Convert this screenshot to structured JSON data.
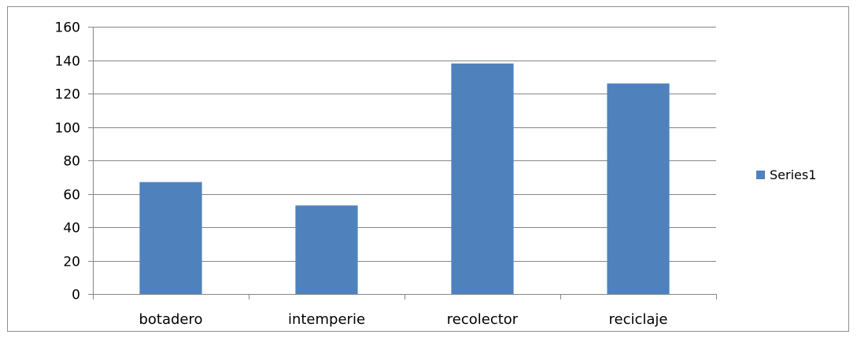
{
  "chart_data": {
    "type": "bar",
    "title": "",
    "xlabel": "",
    "ylabel": "",
    "categories": [
      "botadero",
      "intemperie",
      "recolector",
      "reciclaje"
    ],
    "series": [
      {
        "name": "Series1",
        "values": [
          67,
          53,
          138,
          126
        ],
        "color": "#4f81bd"
      }
    ],
    "ylim": [
      0,
      160
    ],
    "yticks": [
      0,
      20,
      40,
      60,
      80,
      100,
      120,
      140,
      160
    ],
    "ytick_labels": [
      "0",
      "20",
      "40",
      "60",
      "80",
      "100",
      "120",
      "140",
      "160"
    ],
    "grid": true,
    "gridline_color": "#868686",
    "legend_position": "right"
  }
}
